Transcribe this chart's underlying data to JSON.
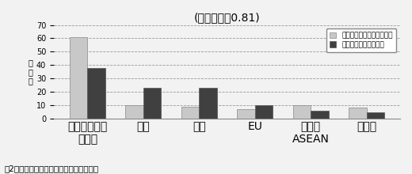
{
  "title": "(相関係数＝0.81)",
  "categories": [
    "香港・台湾・\nマカオ",
    "北米",
    "日本",
    "EU",
    "韓国・\nASEAN",
    "その他"
  ],
  "series1_label": "対外直接投賄に占める割合",
  "series2_label": "銀行資産に占める割合",
  "series1_values": [
    61,
    10,
    9,
    7,
    10,
    8
  ],
  "series2_values": [
    38,
    23,
    23,
    10,
    6,
    5
  ],
  "series1_color": "#c8c8c8",
  "series2_color": "#404040",
  "ylabel": "占\n有\n率",
  "ylim": [
    0,
    70
  ],
  "yticks": [
    0,
    10,
    20,
    30,
    40,
    50,
    60,
    70
  ],
  "caption": "図2：中国における外資系銀行の顧客追従",
  "background_color": "#f2f2f2",
  "grid_color": "#999999",
  "bar_width": 0.32,
  "title_fontsize": 9.5,
  "label_fontsize": 7,
  "tick_fontsize": 7,
  "legend_fontsize": 6.5,
  "caption_fontsize": 7.5
}
